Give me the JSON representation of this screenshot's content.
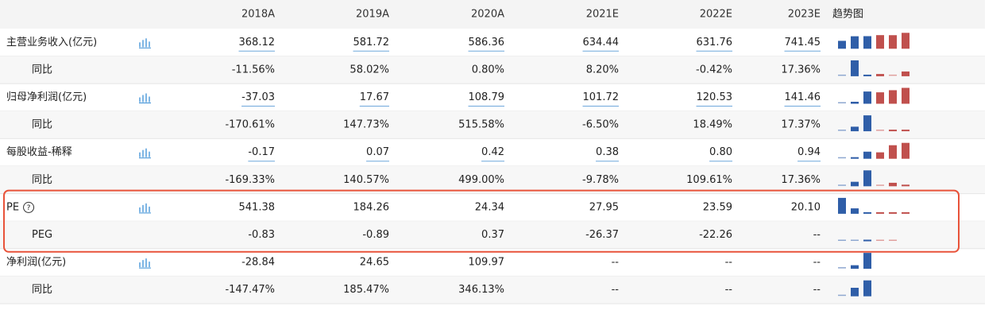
{
  "header": {
    "columns": [
      "2018A",
      "2019A",
      "2020A",
      "2021E",
      "2022E",
      "2023E"
    ],
    "trend": "趋势图"
  },
  "rows": [
    {
      "label": "主营业务收入(亿元)",
      "values": [
        "368.12",
        "581.72",
        "586.36",
        "634.44",
        "631.76",
        "741.45"
      ]
    },
    {
      "label": "同比",
      "values": [
        "-11.56%",
        "58.02%",
        "0.80%",
        "8.20%",
        "-0.42%",
        "17.36%"
      ]
    },
    {
      "label": "归母净利润(亿元)",
      "values": [
        "-37.03",
        "17.67",
        "108.79",
        "101.72",
        "120.53",
        "141.46"
      ]
    },
    {
      "label": "同比",
      "values": [
        "-170.61%",
        "147.73%",
        "515.58%",
        "-6.50%",
        "18.49%",
        "17.37%"
      ]
    },
    {
      "label": "每股收益-稀释",
      "values": [
        "-0.17",
        "0.07",
        "0.42",
        "0.38",
        "0.80",
        "0.94"
      ]
    },
    {
      "label": "同比",
      "values": [
        "-169.33%",
        "140.57%",
        "499.00%",
        "-9.78%",
        "109.61%",
        "17.36%"
      ]
    },
    {
      "label": "PE",
      "values": [
        "541.38",
        "184.26",
        "24.34",
        "27.95",
        "23.59",
        "20.10"
      ]
    },
    {
      "label": "PEG",
      "values": [
        "-0.83",
        "-0.89",
        "0.37",
        "-26.37",
        "-22.26",
        "--"
      ]
    },
    {
      "label": "净利润(亿元)",
      "values": [
        "-28.84",
        "24.65",
        "109.97",
        "--",
        "--",
        "--"
      ]
    },
    {
      "label": "同比",
      "values": [
        "-147.47%",
        "185.47%",
        "346.13%",
        "--",
        "--",
        "--"
      ]
    }
  ]
}
